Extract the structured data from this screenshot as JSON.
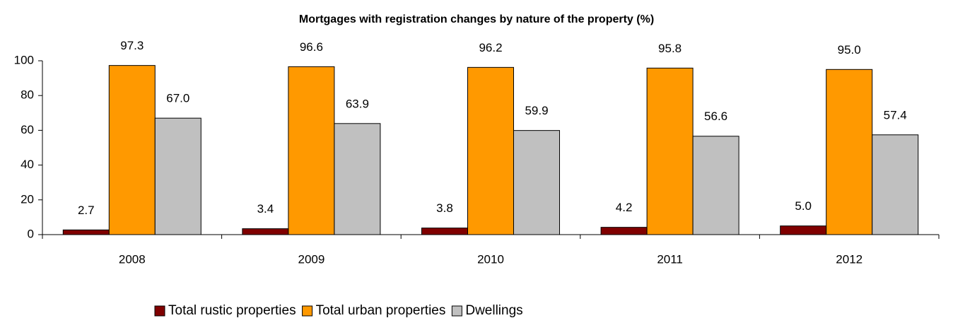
{
  "chart_data": {
    "type": "bar",
    "title": "Mortgages with registration changes by nature of the property (%)",
    "categories": [
      "2008",
      "2009",
      "2010",
      "2011",
      "2012"
    ],
    "series": [
      {
        "name": "Total rustic properties",
        "color": "#800000",
        "values": [
          2.7,
          3.4,
          3.8,
          4.2,
          5.0
        ],
        "value_labels": [
          "2.7",
          "3.4",
          "3.8",
          "4.2",
          "5.0"
        ]
      },
      {
        "name": "Total urban properties",
        "color": "#ff9900",
        "values": [
          97.3,
          96.6,
          96.2,
          95.8,
          95.0
        ],
        "value_labels": [
          "97.3",
          "96.6",
          "96.2",
          "95.8",
          "95.0"
        ]
      },
      {
        "name": "Dwellings",
        "color": "#c0c0c0",
        "values": [
          67.0,
          63.9,
          59.9,
          56.6,
          57.4
        ],
        "value_labels": [
          "67.0",
          "63.9",
          "59.9",
          "56.6",
          "57.4"
        ]
      }
    ],
    "ylim": [
      0,
      100
    ],
    "yticks": [
      0,
      20,
      40,
      60,
      80,
      100
    ],
    "legend": "bottom"
  }
}
